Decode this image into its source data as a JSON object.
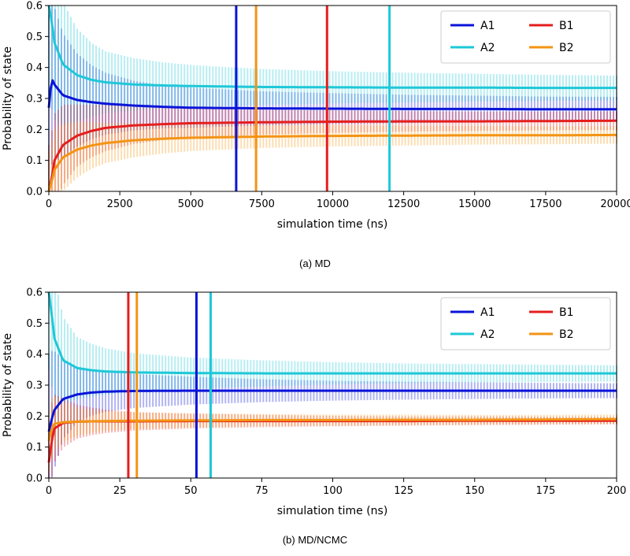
{
  "chart_data": [
    {
      "type": "line",
      "title": "",
      "caption": "(a) MD",
      "xlabel": "simulation time (ns)",
      "ylabel": "Probability of state",
      "xlim": [
        0,
        20000
      ],
      "ylim": [
        0,
        0.6
      ],
      "xticks": [
        0,
        2500,
        5000,
        7500,
        10000,
        12500,
        15000,
        17500,
        20000
      ],
      "xtick_labels": [
        "0",
        "2500",
        "5000",
        "7500",
        "10000",
        "12500",
        "15000",
        "17500",
        "20000"
      ],
      "yticks": [
        0.0,
        0.1,
        0.2,
        0.3,
        0.4,
        0.5,
        0.6
      ],
      "ytick_labels": [
        "0.0",
        "0.1",
        "0.2",
        "0.3",
        "0.4",
        "0.5",
        "0.6"
      ],
      "legend_position": "top-right",
      "legend_columns": 2,
      "series": [
        {
          "name": "A1",
          "color": "#0a14d8",
          "x": [
            0,
            100,
            200,
            500,
            1000,
            1500,
            2000,
            3000,
            4000,
            5000,
            7500,
            10000,
            12500,
            15000,
            17500,
            20000
          ],
          "y": [
            0.27,
            0.365,
            0.345,
            0.31,
            0.295,
            0.288,
            0.283,
            0.277,
            0.273,
            0.27,
            0.268,
            0.267,
            0.266,
            0.266,
            0.265,
            0.265
          ],
          "err": [
            0.3,
            0.28,
            0.25,
            0.2,
            0.15,
            0.12,
            0.1,
            0.08,
            0.07,
            0.065,
            0.055,
            0.05,
            0.046,
            0.043,
            0.041,
            0.04
          ]
        },
        {
          "name": "A2",
          "color": "#1ec8d8",
          "x": [
            0,
            100,
            200,
            500,
            1000,
            1500,
            2000,
            3000,
            4000,
            5000,
            7500,
            10000,
            12500,
            15000,
            17500,
            20000
          ],
          "y": [
            0.6,
            0.55,
            0.48,
            0.41,
            0.375,
            0.36,
            0.352,
            0.345,
            0.342,
            0.34,
            0.337,
            0.336,
            0.335,
            0.335,
            0.334,
            0.334
          ],
          "err": [
            0.3,
            0.28,
            0.25,
            0.2,
            0.15,
            0.12,
            0.1,
            0.085,
            0.075,
            0.068,
            0.058,
            0.052,
            0.048,
            0.045,
            0.042,
            0.04
          ]
        },
        {
          "name": "B1",
          "color": "#e51e1e",
          "x": [
            0,
            100,
            200,
            500,
            1000,
            1500,
            2000,
            3000,
            4000,
            5000,
            7500,
            10000,
            12500,
            15000,
            17500,
            20000
          ],
          "y": [
            0.0,
            0.04,
            0.1,
            0.15,
            0.18,
            0.195,
            0.205,
            0.213,
            0.217,
            0.22,
            0.223,
            0.225,
            0.226,
            0.226,
            0.227,
            0.228
          ],
          "err": [
            0.15,
            0.15,
            0.15,
            0.13,
            0.1,
            0.085,
            0.075,
            0.06,
            0.052,
            0.047,
            0.04,
            0.036,
            0.033,
            0.031,
            0.03,
            0.03
          ]
        },
        {
          "name": "B2",
          "color": "#f39414",
          "x": [
            0,
            100,
            200,
            500,
            1000,
            1500,
            2000,
            3000,
            4000,
            5000,
            7500,
            10000,
            12500,
            15000,
            17500,
            20000
          ],
          "y": [
            0.0,
            0.03,
            0.07,
            0.11,
            0.135,
            0.148,
            0.156,
            0.165,
            0.17,
            0.173,
            0.177,
            0.179,
            0.18,
            0.181,
            0.181,
            0.182
          ],
          "err": [
            0.13,
            0.13,
            0.13,
            0.11,
            0.09,
            0.075,
            0.065,
            0.055,
            0.048,
            0.043,
            0.037,
            0.034,
            0.032,
            0.03,
            0.029,
            0.028
          ]
        }
      ],
      "vlines": [
        {
          "series": "A1",
          "x": 6600
        },
        {
          "series": "B2",
          "x": 7300
        },
        {
          "series": "B1",
          "x": 9800
        },
        {
          "series": "A2",
          "x": 12000
        }
      ]
    },
    {
      "type": "line",
      "title": "",
      "caption": "(b) MD/NCMC",
      "xlabel": "simulation time (ns)",
      "ylabel": "Probability of state",
      "xlim": [
        0,
        200
      ],
      "ylim": [
        0,
        0.6
      ],
      "xticks": [
        0,
        25,
        50,
        75,
        100,
        125,
        150,
        175,
        200
      ],
      "xtick_labels": [
        "0",
        "25",
        "50",
        "75",
        "100",
        "125",
        "150",
        "175",
        "200"
      ],
      "yticks": [
        0.0,
        0.1,
        0.2,
        0.3,
        0.4,
        0.5,
        0.6
      ],
      "ytick_labels": [
        "0.0",
        "0.1",
        "0.2",
        "0.3",
        "0.4",
        "0.5",
        "0.6"
      ],
      "legend_position": "top-right",
      "legend_columns": 2,
      "series": [
        {
          "name": "A1",
          "color": "#0a14d8",
          "x": [
            0,
            1,
            2,
            5,
            10,
            15,
            20,
            30,
            50,
            75,
            100,
            125,
            150,
            175,
            200
          ],
          "y": [
            0.15,
            0.19,
            0.22,
            0.255,
            0.27,
            0.276,
            0.279,
            0.281,
            0.282,
            0.282,
            0.282,
            0.282,
            0.282,
            0.282,
            0.282
          ],
          "err": [
            0.25,
            0.22,
            0.19,
            0.13,
            0.09,
            0.075,
            0.065,
            0.055,
            0.045,
            0.037,
            0.032,
            0.029,
            0.027,
            0.025,
            0.024
          ]
        },
        {
          "name": "A2",
          "color": "#1ec8d8",
          "x": [
            0,
            1,
            2,
            5,
            10,
            15,
            20,
            30,
            50,
            75,
            100,
            125,
            150,
            175,
            200
          ],
          "y": [
            0.6,
            0.53,
            0.45,
            0.38,
            0.355,
            0.348,
            0.344,
            0.341,
            0.339,
            0.338,
            0.338,
            0.338,
            0.338,
            0.338,
            0.338
          ],
          "err": [
            0.25,
            0.23,
            0.2,
            0.14,
            0.1,
            0.085,
            0.075,
            0.062,
            0.05,
            0.042,
            0.036,
            0.032,
            0.03,
            0.028,
            0.026
          ]
        },
        {
          "name": "B1",
          "color": "#e51e1e",
          "x": [
            0,
            1,
            2,
            5,
            10,
            15,
            20,
            30,
            50,
            75,
            100,
            125,
            150,
            175,
            200
          ],
          "y": [
            0.05,
            0.12,
            0.16,
            0.178,
            0.182,
            0.183,
            0.183,
            0.183,
            0.184,
            0.184,
            0.184,
            0.184,
            0.185,
            0.185,
            0.185
          ],
          "err": [
            0.12,
            0.12,
            0.11,
            0.08,
            0.055,
            0.045,
            0.038,
            0.03,
            0.024,
            0.02,
            0.017,
            0.015,
            0.014,
            0.013,
            0.012
          ]
        },
        {
          "name": "B2",
          "color": "#f39414",
          "x": [
            0,
            1,
            2,
            5,
            10,
            15,
            20,
            30,
            50,
            75,
            100,
            125,
            150,
            175,
            200
          ],
          "y": [
            0.12,
            0.16,
            0.175,
            0.18,
            0.182,
            0.183,
            0.184,
            0.185,
            0.186,
            0.187,
            0.187,
            0.188,
            0.188,
            0.189,
            0.19
          ],
          "err": [
            0.1,
            0.1,
            0.09,
            0.065,
            0.045,
            0.037,
            0.032,
            0.027,
            0.023,
            0.02,
            0.018,
            0.017,
            0.016,
            0.015,
            0.015
          ]
        }
      ],
      "vlines": [
        {
          "series": "B1",
          "x": 28
        },
        {
          "series": "B2",
          "x": 31
        },
        {
          "series": "A1",
          "x": 52
        },
        {
          "series": "A2",
          "x": 57
        }
      ]
    }
  ]
}
